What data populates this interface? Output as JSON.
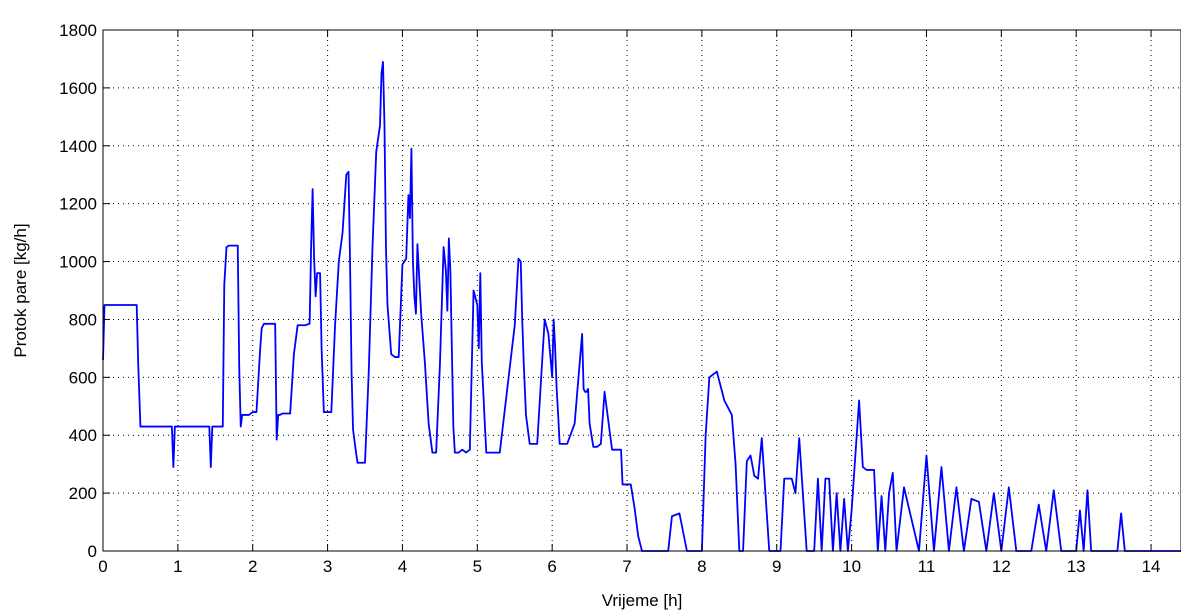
{
  "chart_data": {
    "type": "line",
    "title": "",
    "xlabel": "Vrijeme [h]",
    "ylabel": "Protok pare [kg/h]",
    "xlim": [
      0,
      14.4
    ],
    "ylim": [
      0,
      1800
    ],
    "xticks": [
      0,
      1,
      2,
      3,
      4,
      5,
      6,
      7,
      8,
      9,
      10,
      11,
      12,
      13,
      14
    ],
    "yticks": [
      0,
      200,
      400,
      600,
      800,
      1000,
      1200,
      1400,
      1600,
      1800
    ],
    "grid": true,
    "legend": "none",
    "series": [
      {
        "color": "#0000ff",
        "x": [
          0,
          0.02,
          0.04,
          0.06,
          0.45,
          0.47,
          0.5,
          0.52,
          0.92,
          0.94,
          0.96,
          0.98,
          1.0,
          1.42,
          1.44,
          1.46,
          1.5,
          1.55,
          1.6,
          1.62,
          1.65,
          1.68,
          1.7,
          1.8,
          1.82,
          1.84,
          1.86,
          1.9,
          1.95,
          2.0,
          2.05,
          2.1,
          2.12,
          2.15,
          2.2,
          2.3,
          2.32,
          2.34,
          2.36,
          2.4,
          2.5,
          2.55,
          2.6,
          2.7,
          2.76,
          2.78,
          2.8,
          2.82,
          2.84,
          2.86,
          2.9,
          2.92,
          2.95,
          3.0,
          3.05,
          3.1,
          3.15,
          3.2,
          3.25,
          3.28,
          3.3,
          3.32,
          3.34,
          3.38,
          3.4,
          3.45,
          3.5,
          3.55,
          3.6,
          3.65,
          3.7,
          3.72,
          3.74,
          3.76,
          3.78,
          3.8,
          3.85,
          3.9,
          3.95,
          4.0,
          4.05,
          4.08,
          4.1,
          4.12,
          4.14,
          4.16,
          4.18,
          4.2,
          4.25,
          4.3,
          4.35,
          4.4,
          4.45,
          4.5,
          4.55,
          4.58,
          4.6,
          4.62,
          4.64,
          4.66,
          4.68,
          4.7,
          4.72,
          4.75,
          4.8,
          4.85,
          4.9,
          4.95,
          5.0,
          5.02,
          5.04,
          5.06,
          5.08,
          5.1,
          5.12,
          5.15,
          5.2,
          5.25,
          5.3,
          5.4,
          5.5,
          5.55,
          5.58,
          5.6,
          5.62,
          5.65,
          5.7,
          5.75,
          5.8,
          5.9,
          5.95,
          6.0,
          6.02,
          6.04,
          6.06,
          6.08,
          6.1,
          6.12,
          6.15,
          6.2,
          6.3,
          6.4,
          6.42,
          6.44,
          6.46,
          6.48,
          6.5,
          6.55,
          6.6,
          6.65,
          6.7,
          6.8,
          6.9,
          6.92,
          6.94,
          6.96,
          7.0,
          7.05,
          7.1,
          7.15,
          7.2,
          7.3,
          7.4,
          7.5,
          7.55,
          7.6,
          7.7,
          7.8,
          7.85,
          7.9,
          8.0,
          8.05,
          8.1,
          8.2,
          8.3,
          8.4,
          8.45,
          8.5,
          8.55,
          8.6,
          8.65,
          8.7,
          8.75,
          8.8,
          8.9,
          8.95,
          9.0,
          9.05,
          9.1,
          9.15,
          9.2,
          9.25,
          9.3,
          9.4,
          9.5,
          9.55,
          9.6,
          9.65,
          9.7,
          9.75,
          9.8,
          9.85,
          9.9,
          9.95,
          10.0,
          10.1,
          10.15,
          10.2,
          10.25,
          10.3,
          10.35,
          10.4,
          10.45,
          10.5,
          10.55,
          10.6,
          10.7,
          10.8,
          10.9,
          11.0,
          11.1,
          11.2,
          11.3,
          11.4,
          11.5,
          11.6,
          11.7,
          11.8,
          11.9,
          12.0,
          12.1,
          12.2,
          12.3,
          12.4,
          12.5,
          12.6,
          12.7,
          12.8,
          12.9,
          13.0,
          13.05,
          13.1,
          13.15,
          13.2,
          13.3,
          13.4,
          13.5,
          13.55,
          13.6,
          13.65,
          13.7,
          13.8,
          14.0,
          14.2,
          14.4
        ],
        "y": [
          660,
          850,
          850,
          850,
          850,
          650,
          430,
          430,
          430,
          290,
          430,
          430,
          430,
          430,
          290,
          430,
          430,
          430,
          430,
          920,
          1050,
          1055,
          1055,
          1055,
          630,
          430,
          470,
          470,
          470,
          480,
          480,
          700,
          770,
          785,
          785,
          785,
          385,
          470,
          470,
          475,
          475,
          680,
          780,
          780,
          785,
          1050,
          1250,
          1010,
          880,
          960,
          960,
          700,
          480,
          480,
          480,
          780,
          1000,
          1100,
          1300,
          1310,
          1000,
          620,
          420,
          340,
          305,
          305,
          305,
          620,
          1050,
          1380,
          1470,
          1650,
          1690,
          1470,
          1050,
          850,
          680,
          670,
          670,
          990,
          1010,
          1230,
          1150,
          1390,
          1000,
          880,
          820,
          1060,
          820,
          650,
          440,
          340,
          340,
          640,
          1050,
          970,
          830,
          1080,
          970,
          700,
          430,
          340,
          340,
          340,
          350,
          340,
          350,
          900,
          850,
          700,
          960,
          650,
          550,
          440,
          340,
          340,
          340,
          340,
          340,
          560,
          780,
          1010,
          1000,
          800,
          650,
          470,
          370,
          370,
          370,
          800,
          750,
          600,
          800,
          700,
          560,
          470,
          370,
          370,
          370,
          370,
          440,
          750,
          560,
          550,
          550,
          560,
          440,
          360,
          360,
          370,
          550,
          350,
          350,
          350,
          230,
          230,
          230,
          230,
          150,
          50,
          0,
          0,
          0,
          0,
          0,
          120,
          130,
          0,
          0,
          0,
          0,
          400,
          600,
          620,
          520,
          470,
          300,
          0,
          0,
          310,
          330,
          260,
          250,
          390,
          0,
          0,
          0,
          0,
          250,
          250,
          250,
          200,
          390,
          0,
          0,
          250,
          0,
          250,
          250,
          0,
          200,
          0,
          180,
          0,
          140,
          520,
          290,
          280,
          280,
          280,
          0,
          190,
          0,
          200,
          270,
          0,
          220,
          110,
          0,
          330,
          0,
          290,
          0,
          220,
          0,
          180,
          170,
          0,
          200,
          0,
          220,
          0,
          0,
          0,
          160,
          0,
          210,
          0,
          0,
          0,
          140,
          0,
          210,
          0,
          0,
          0,
          0,
          0,
          130,
          0,
          0,
          0,
          0,
          0,
          0
        ]
      }
    ]
  }
}
